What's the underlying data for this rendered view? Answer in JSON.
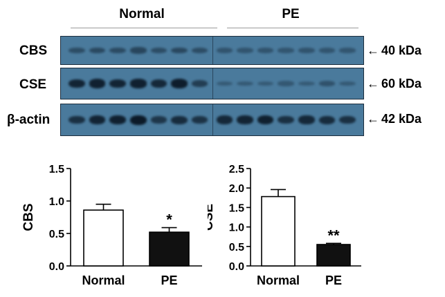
{
  "blot": {
    "group_left": "Normal",
    "group_right": "PE",
    "rows": [
      {
        "label": "CBS",
        "marker": "40 kDa"
      },
      {
        "label": "CSE",
        "marker": "60 kDa"
      },
      {
        "label": "β-actin",
        "marker": "42 kDa"
      }
    ],
    "lanes_per_group": 7,
    "band_intensity": {
      "CBS": [
        0.3,
        0.35,
        0.32,
        0.38,
        0.3,
        0.36,
        0.3,
        0.2,
        0.18,
        0.2,
        0.17,
        0.2,
        0.19,
        0.17
      ],
      "CSE": [
        0.85,
        0.9,
        0.85,
        0.9,
        0.8,
        0.95,
        0.5,
        0.1,
        0.12,
        0.1,
        0.15,
        0.1,
        0.22,
        0.12
      ],
      "β-actin": [
        0.7,
        0.85,
        0.9,
        1.0,
        0.6,
        0.75,
        0.65,
        0.8,
        0.85,
        0.9,
        0.7,
        0.8,
        0.75,
        0.7
      ]
    },
    "colors": {
      "background": "#4a7a9c",
      "band": "#0c1a28"
    }
  },
  "chart_data": [
    {
      "type": "bar",
      "ylabel": "CBS",
      "categories": [
        "Normal",
        "PE"
      ],
      "values": [
        0.86,
        0.52
      ],
      "errors": [
        0.09,
        0.07
      ],
      "ylim": [
        0,
        1.5
      ],
      "yticks": [
        "0.0",
        "0.5",
        "1.0",
        "1.5"
      ],
      "significance": [
        "",
        "*"
      ],
      "bar_fills": [
        "#ffffff",
        "#111111"
      ]
    },
    {
      "type": "bar",
      "ylabel": "CSE",
      "categories": [
        "Normal",
        "PE"
      ],
      "values": [
        1.78,
        0.55
      ],
      "errors": [
        0.18,
        0.03
      ],
      "ylim": [
        0,
        2.5
      ],
      "yticks": [
        "0.0",
        "0.5",
        "1.0",
        "1.5",
        "2.0",
        "2.5"
      ],
      "significance": [
        "",
        "**"
      ],
      "bar_fills": [
        "#ffffff",
        "#111111"
      ]
    }
  ]
}
